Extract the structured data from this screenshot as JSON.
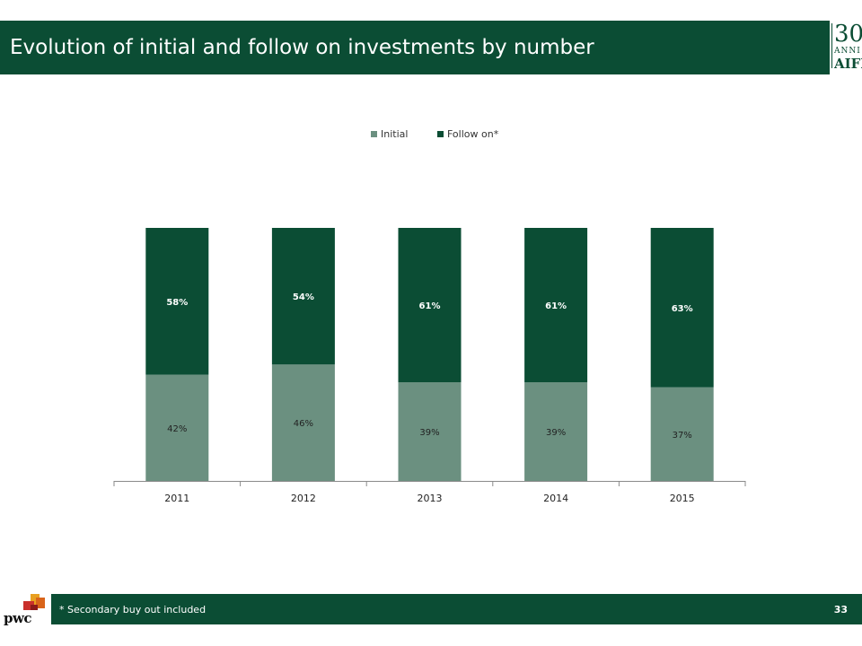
{
  "slide": {
    "title": "Evolution of initial and follow on investments by number",
    "footnote": "* Secondary buy out included",
    "page_number": "33"
  },
  "logos": {
    "aifi_number": "30",
    "aifi_anni": "ANNI",
    "aifi_name": "AIFI",
    "pwc_name": "pwc"
  },
  "colors": {
    "initial": "#6b9080",
    "follow_on": "#0b4d34",
    "header": "#0b4d34"
  },
  "chart_data": {
    "type": "bar",
    "stacked": true,
    "title": "",
    "xlabel": "",
    "ylabel": "",
    "ylim": [
      0,
      100
    ],
    "legend": "top-center",
    "grid": false,
    "categories": [
      "2011",
      "2012",
      "2013",
      "2014",
      "2015"
    ],
    "series": [
      {
        "name": "Initial",
        "values": [
          42,
          46,
          39,
          39,
          37
        ],
        "labels": [
          "42%",
          "46%",
          "39%",
          "39%",
          "37%"
        ]
      },
      {
        "name": "Follow on*",
        "values": [
          58,
          54,
          61,
          61,
          63
        ],
        "labels": [
          "58%",
          "54%",
          "61%",
          "61%",
          "63%"
        ]
      }
    ]
  }
}
